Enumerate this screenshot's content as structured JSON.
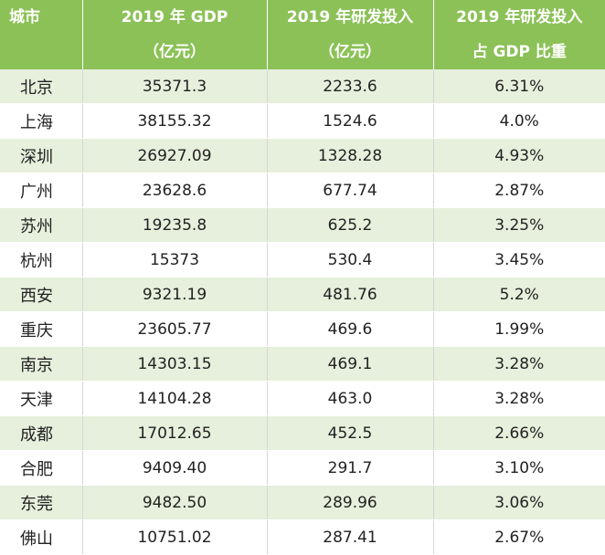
{
  "header": {
    "city": "城市",
    "gdp_line1": "2019 年 GDP",
    "gdp_line2": "（亿元）",
    "rd_line1": "2019 年研发投入",
    "rd_line2": "（亿元）",
    "ratio_line1": "2019 年研发投入",
    "ratio_line2": "占 GDP 比重"
  },
  "rows": [
    {
      "city": "北京",
      "gdp": "35371.3",
      "rd": "2233.6",
      "ratio": "6.31%"
    },
    {
      "city": "上海",
      "gdp": "38155.32",
      "rd": "1524.6",
      "ratio": "4.0%"
    },
    {
      "city": "深圳",
      "gdp": "26927.09",
      "rd": "1328.28",
      "ratio": "4.93%"
    },
    {
      "city": "广州",
      "gdp": "23628.6",
      "rd": "677.74",
      "ratio": "2.87%"
    },
    {
      "city": "苏州",
      "gdp": "19235.8",
      "rd": "625.2",
      "ratio": "3.25%"
    },
    {
      "city": "杭州",
      "gdp": "15373",
      "rd": "530.4",
      "ratio": "3.45%"
    },
    {
      "city": "西安",
      "gdp": "9321.19",
      "rd": "481.76",
      "ratio": "5.2%"
    },
    {
      "city": "重庆",
      "gdp": "23605.77",
      "rd": "469.6",
      "ratio": "1.99%"
    },
    {
      "city": "南京",
      "gdp": "14303.15",
      "rd": "469.1",
      "ratio": "3.28%"
    },
    {
      "city": "天津",
      "gdp": "14104.28",
      "rd": "463.0",
      "ratio": "3.28%"
    },
    {
      "city": "成都",
      "gdp": "17012.65",
      "rd": "452.5",
      "ratio": "2.66%"
    },
    {
      "city": "合肥",
      "gdp": "9409.40",
      "rd": "291.7",
      "ratio": "3.10%"
    },
    {
      "city": "东莞",
      "gdp": "9482.50",
      "rd": "289.96",
      "ratio": "3.06%"
    },
    {
      "city": "佛山",
      "gdp": "10751.02",
      "rd": "287.41",
      "ratio": "2.67%"
    }
  ],
  "colors": {
    "header_bg": "#8bc157",
    "stripe_bg": "#e6f0dc"
  }
}
